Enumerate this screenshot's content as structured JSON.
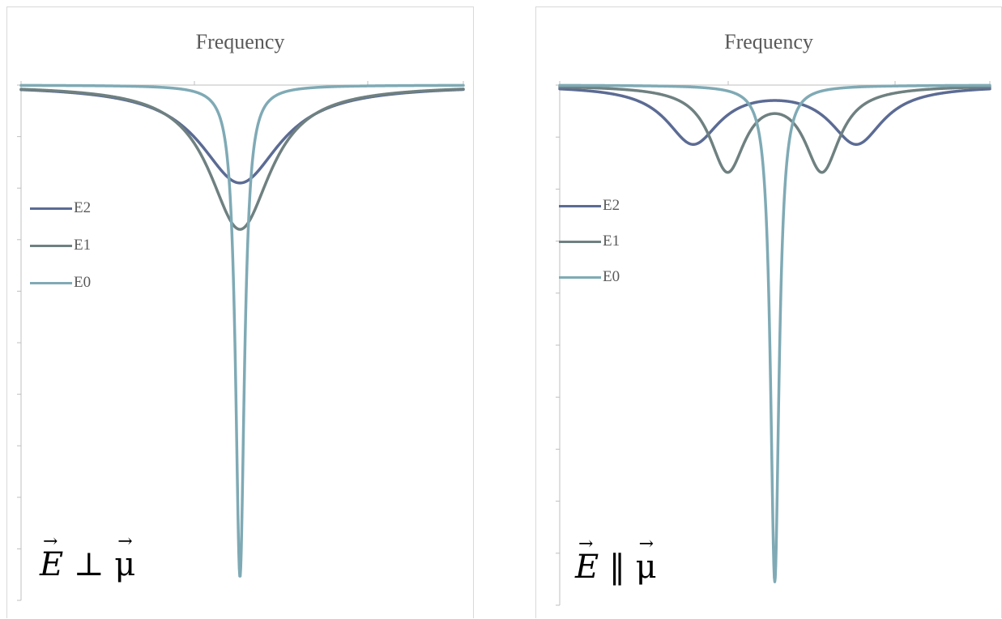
{
  "chart_data": [
    {
      "type": "line",
      "title": "Frequency",
      "xlabel": "",
      "ylabel": "",
      "x_axis_position": "top",
      "grid": false,
      "legend_placement": "middle-left",
      "xlim": [
        0,
        1
      ],
      "ylim": [
        -1,
        0
      ],
      "annotation": "E ⊥ μ",
      "series": [
        {
          "name": "E2",
          "color": "#5b6b94",
          "center": 0.495,
          "width": 0.11,
          "depth": 0.19,
          "split": 0
        },
        {
          "name": "E1",
          "color": "#6f8080",
          "center": 0.495,
          "width": 0.085,
          "depth": 0.28,
          "split": 0
        },
        {
          "name": "E0",
          "color": "#7faab5",
          "center": 0.495,
          "width": 0.012,
          "depth": 0.955,
          "split": 0
        }
      ]
    },
    {
      "type": "line",
      "title": "Frequency",
      "xlabel": "",
      "ylabel": "",
      "x_axis_position": "top",
      "grid": false,
      "legend_placement": "middle-left",
      "xlim": [
        0,
        1
      ],
      "ylim": [
        -1,
        0
      ],
      "annotation": "E ‖ μ",
      "series": [
        {
          "name": "E2",
          "color": "#5b6b94",
          "center": 0.5,
          "width": 0.075,
          "depth": 0.11,
          "split": 0.19,
          "line_order": 0
        },
        {
          "name": "E1",
          "color": "#6f8080",
          "center": 0.5,
          "width": 0.05,
          "depth": 0.16,
          "split": 0.11,
          "line_order": 1
        },
        {
          "name": "E0",
          "color": "#7faab5",
          "center": 0.5,
          "width": 0.012,
          "depth": 0.955,
          "split": 0,
          "line_order": 2
        }
      ]
    }
  ]
}
